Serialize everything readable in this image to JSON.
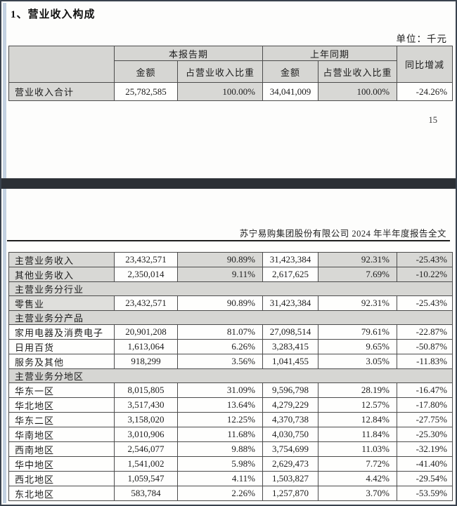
{
  "page": {
    "title": "1、营业收入构成",
    "unit_label": "单位：千元",
    "page_number": "15",
    "report_footer": "苏宁易购集团股份有限公司 2024 年半年度报告全文"
  },
  "table_headers": {
    "current_period": "本报告期",
    "prior_period": "上年同期",
    "yoy_change": "同比增减",
    "amount": "金额",
    "revenue_share": "占营业收入比重"
  },
  "summary_table": {
    "rows": [
      {
        "kind": "data",
        "label": "营业收入合计",
        "cur_amount": "25,782,585",
        "cur_share": "100.00%",
        "prior_amount": "34,041,009",
        "prior_share": "100.00%",
        "yoy": "-24.26%"
      }
    ]
  },
  "detail_table": {
    "rows": [
      {
        "kind": "data",
        "label": "主营业务收入",
        "cur_amount": "23,432,571",
        "cur_share": "90.89%",
        "prior_amount": "31,423,384",
        "prior_share": "92.31%",
        "yoy": "-25.43%"
      },
      {
        "kind": "data",
        "label": "其他业务收入",
        "cur_amount": "2,350,014",
        "cur_share": "9.11%",
        "prior_amount": "2,617,625",
        "prior_share": "7.69%",
        "yoy": "-10.22%"
      },
      {
        "kind": "section",
        "label": "主营业务分行业"
      },
      {
        "kind": "data",
        "label": "零售业",
        "cur_amount": "23,432,571",
        "cur_share": "90.89%",
        "prior_amount": "31,423,384",
        "prior_share": "92.31%",
        "yoy": "-25.43%"
      },
      {
        "kind": "section",
        "label": "主营业务分产品"
      },
      {
        "kind": "data",
        "label": "家用电器及消费电子",
        "cur_amount": "20,901,208",
        "cur_share": "81.07%",
        "prior_amount": "27,098,514",
        "prior_share": "79.61%",
        "yoy": "-22.87%"
      },
      {
        "kind": "data",
        "label": "日用百货",
        "cur_amount": "1,613,064",
        "cur_share": "6.26%",
        "prior_amount": "3,283,415",
        "prior_share": "9.65%",
        "yoy": "-50.87%"
      },
      {
        "kind": "data",
        "label": "服务及其他",
        "cur_amount": "918,299",
        "cur_share": "3.56%",
        "prior_amount": "1,041,455",
        "prior_share": "3.05%",
        "yoy": "-11.83%"
      },
      {
        "kind": "section",
        "label": "主营业务分地区"
      },
      {
        "kind": "data",
        "label": "华东一区",
        "cur_amount": "8,015,805",
        "cur_share": "31.09%",
        "prior_amount": "9,596,798",
        "prior_share": "28.19%",
        "yoy": "-16.47%"
      },
      {
        "kind": "data",
        "label": "华北地区",
        "cur_amount": "3,517,430",
        "cur_share": "13.64%",
        "prior_amount": "4,279,229",
        "prior_share": "12.57%",
        "yoy": "-17.80%"
      },
      {
        "kind": "data",
        "label": "华东二区",
        "cur_amount": "3,158,020",
        "cur_share": "12.25%",
        "prior_amount": "4,370,738",
        "prior_share": "12.84%",
        "yoy": "-27.75%"
      },
      {
        "kind": "data",
        "label": "华南地区",
        "cur_amount": "3,010,906",
        "cur_share": "11.68%",
        "prior_amount": "4,030,750",
        "prior_share": "11.84%",
        "yoy": "-25.30%"
      },
      {
        "kind": "data",
        "label": "西南地区",
        "cur_amount": "2,546,077",
        "cur_share": "9.88%",
        "prior_amount": "3,754,699",
        "prior_share": "11.03%",
        "yoy": "-32.19%"
      },
      {
        "kind": "data",
        "label": "华中地区",
        "cur_amount": "1,541,002",
        "cur_share": "5.98%",
        "prior_amount": "2,629,473",
        "prior_share": "7.72%",
        "yoy": "-41.40%"
      },
      {
        "kind": "data",
        "label": "西北地区",
        "cur_amount": "1,059,547",
        "cur_share": "4.11%",
        "prior_amount": "1,503,827",
        "prior_share": "4.42%",
        "yoy": "-29.54%"
      },
      {
        "kind": "data",
        "label": "东北地区",
        "cur_amount": "583,784",
        "cur_share": "2.26%",
        "prior_amount": "1,257,870",
        "prior_share": "3.70%",
        "yoy": "-53.59%"
      }
    ]
  }
}
